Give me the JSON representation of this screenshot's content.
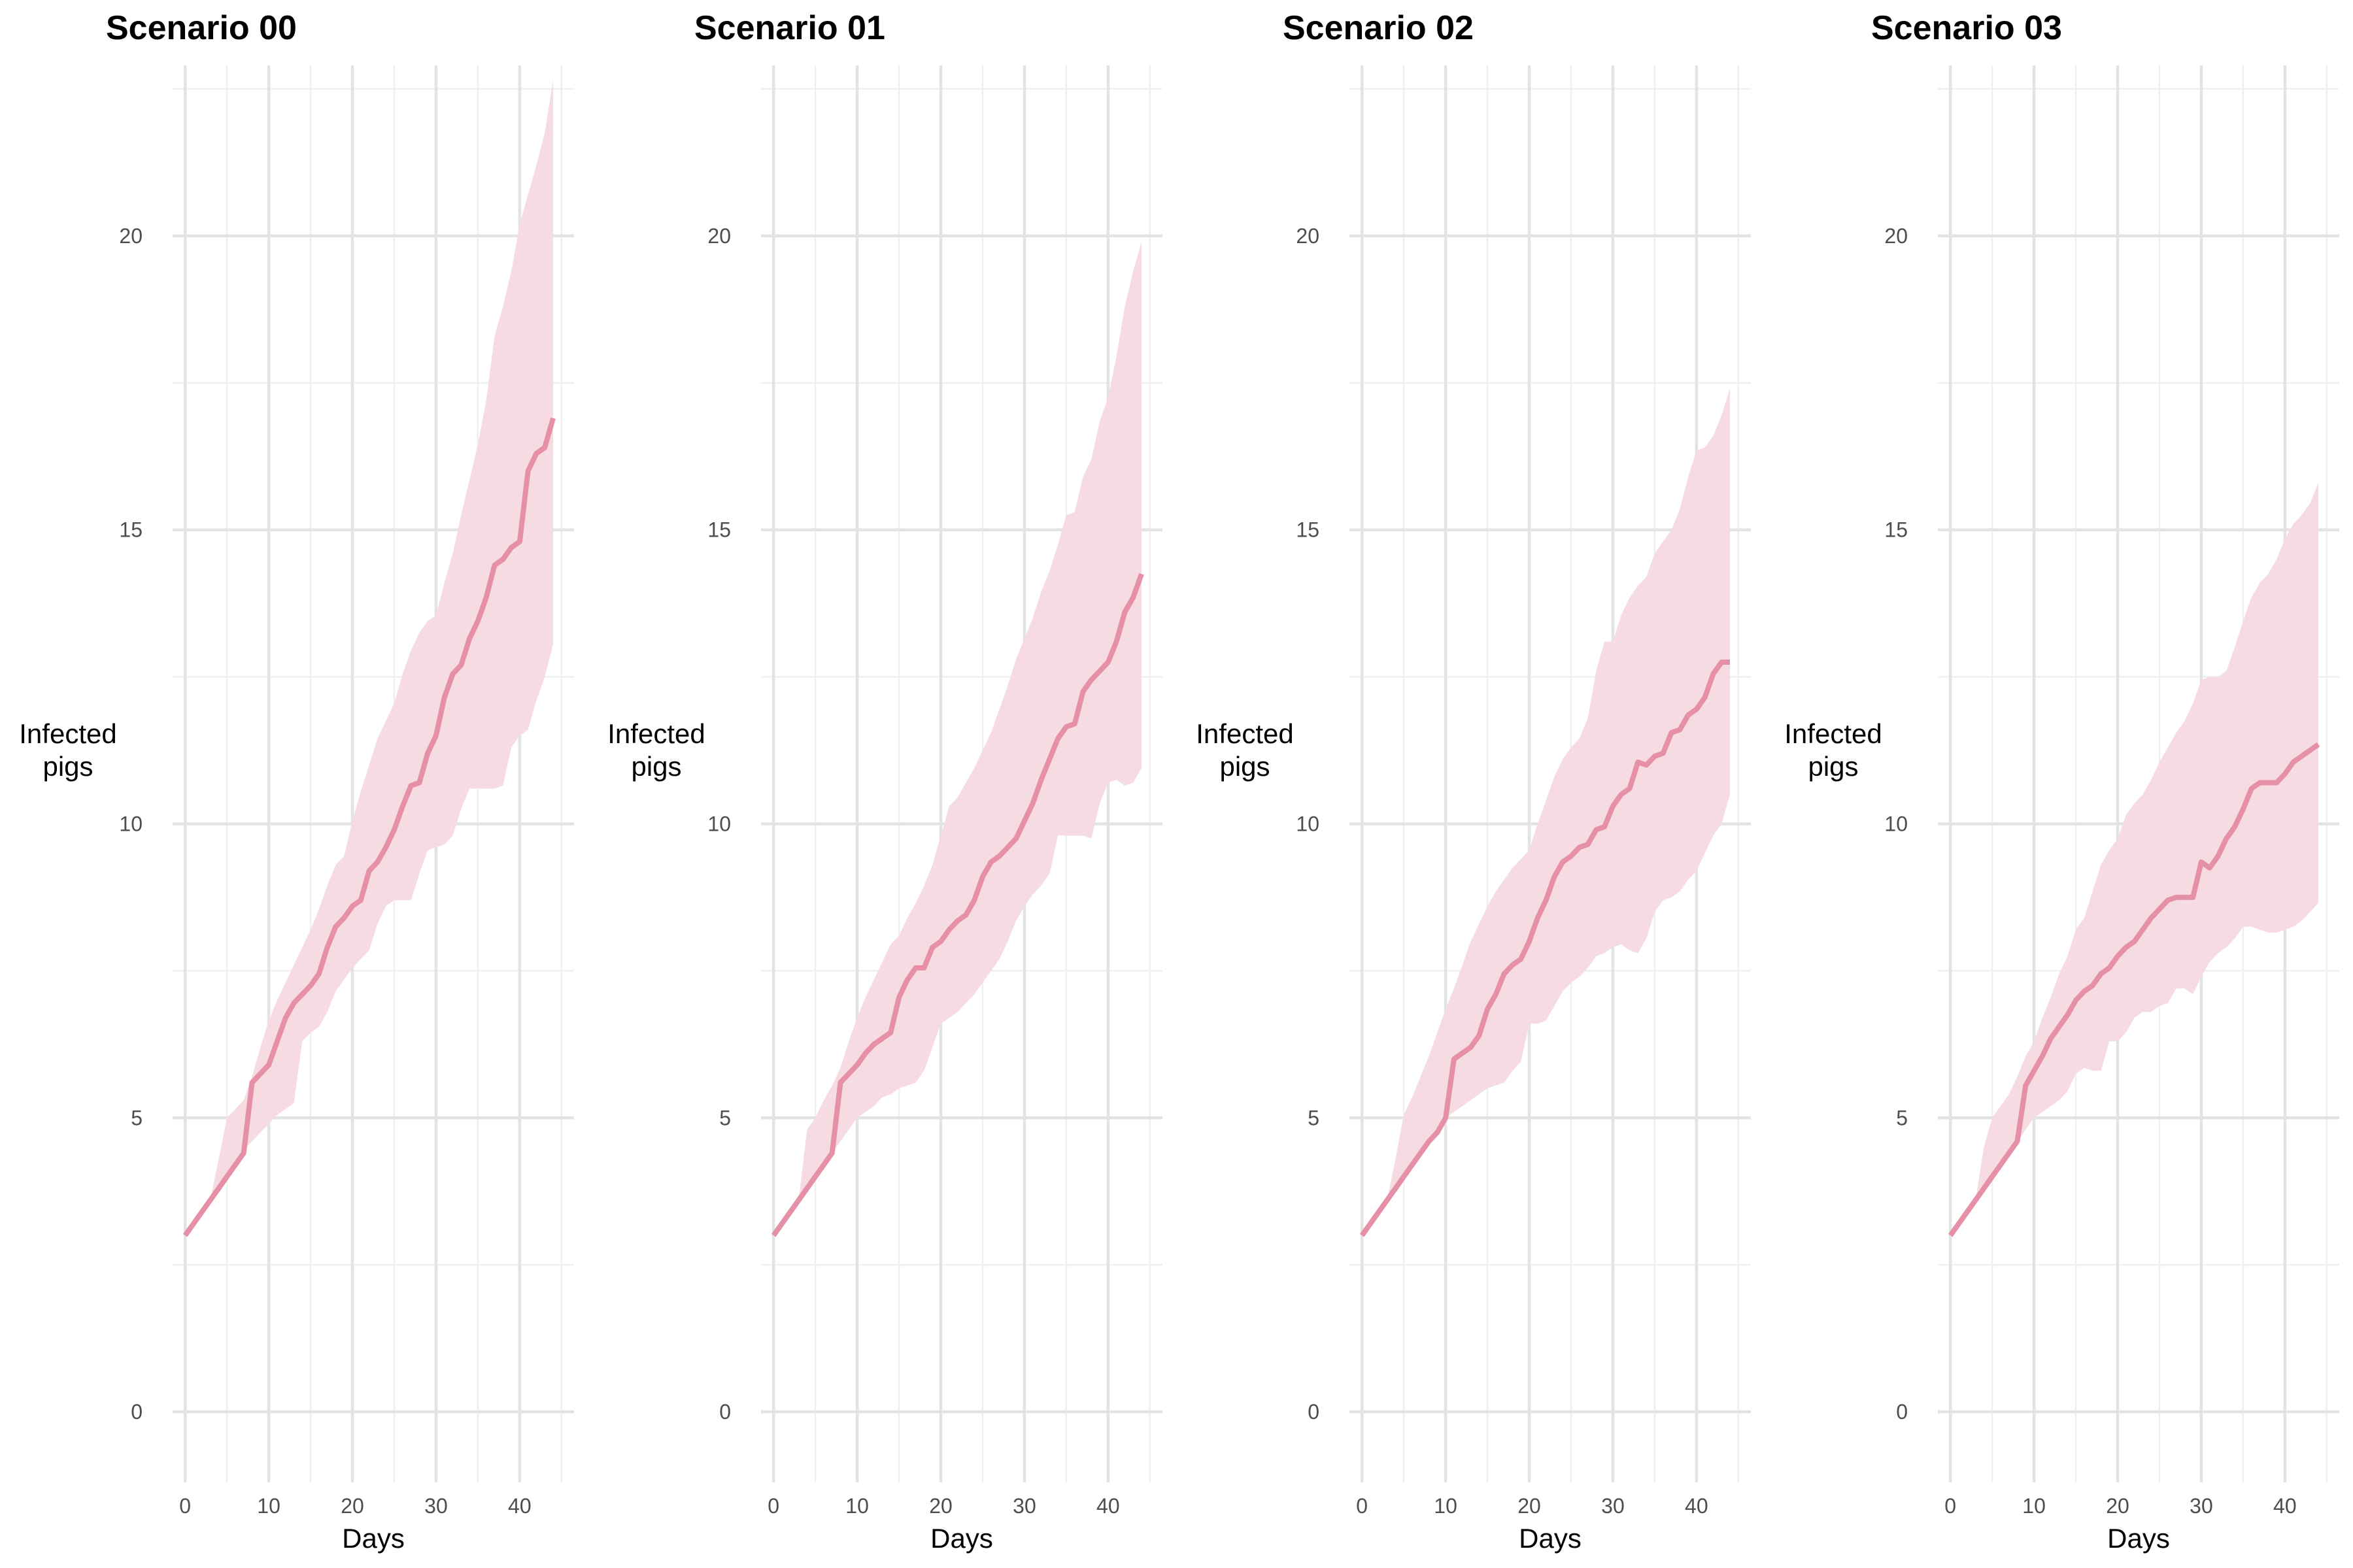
{
  "colors": {
    "line": "#e590a6",
    "ribbon": "#f7dbe3",
    "grid_major": "#e3e3e3",
    "grid_minor": "#efefef",
    "tick_text": "#4d4d4d"
  },
  "chart_data": [
    {
      "type": "line",
      "title": "Scenario 00",
      "xlabel": "Days",
      "ylabel": "Infected\npigs",
      "xlim": [
        -1.5,
        46.5
      ],
      "ylim": [
        -1.2,
        22.9
      ],
      "xticks": [
        0,
        10,
        20,
        30,
        40
      ],
      "yticks": [
        0,
        5,
        10,
        15,
        20
      ],
      "grid": true,
      "x": [
        0,
        1,
        2,
        3,
        4,
        5,
        6,
        7,
        8,
        9,
        10,
        11,
        12,
        13,
        14,
        15,
        16,
        17,
        18,
        19,
        20,
        21,
        22,
        23,
        24,
        25,
        26,
        27,
        28,
        29,
        30,
        31,
        32,
        33,
        34,
        35,
        36,
        37,
        38,
        39,
        40,
        41,
        42,
        43,
        44
      ],
      "series": [
        {
          "values": [
            3.0,
            3.2,
            3.4,
            3.6,
            3.8,
            4.0,
            4.2,
            4.4,
            5.6,
            5.75,
            5.9,
            6.3,
            6.7,
            6.95,
            7.1,
            7.25,
            7.45,
            7.9,
            8.25,
            8.4,
            8.6,
            8.7,
            9.2,
            9.35,
            9.6,
            9.9,
            10.3,
            10.65,
            10.7,
            11.2,
            11.5,
            12.15,
            12.55,
            12.7,
            13.15,
            13.45,
            13.85,
            14.4,
            14.5,
            14.7,
            14.8,
            16.0,
            16.3,
            16.4,
            16.9
          ]
        },
        {
          "values": [
            3.0,
            3.2,
            3.4,
            3.6,
            3.8,
            4.0,
            4.2,
            4.45,
            4.6,
            4.75,
            4.9,
            5.05,
            5.15,
            5.25,
            6.3,
            6.45,
            6.55,
            6.8,
            7.15,
            7.35,
            7.55,
            7.7,
            7.85,
            8.3,
            8.6,
            8.7,
            8.7,
            8.7,
            9.15,
            9.55,
            9.6,
            9.65,
            9.8,
            10.25,
            10.6,
            10.6,
            10.6,
            10.6,
            10.65,
            11.3,
            11.5,
            11.6,
            12.1,
            12.5,
            13.05
          ]
        },
        {
          "values": [
            3.0,
            3.2,
            3.4,
            3.6,
            4.3,
            5.0,
            5.15,
            5.3,
            5.7,
            6.2,
            6.65,
            7.0,
            7.3,
            7.6,
            7.9,
            8.2,
            8.55,
            8.95,
            9.3,
            9.45,
            10.05,
            10.55,
            11.0,
            11.45,
            11.75,
            12.05,
            12.55,
            12.95,
            13.25,
            13.45,
            13.55,
            14.1,
            14.6,
            15.25,
            15.85,
            16.45,
            17.2,
            18.3,
            18.8,
            19.4,
            20.2,
            20.7,
            21.2,
            21.75,
            22.65
          ]
        }
      ]
    },
    {
      "type": "line",
      "title": "Scenario 01",
      "xlabel": "Days",
      "ylabel": "Infected\npigs",
      "xlim": [
        -1.5,
        46.5
      ],
      "ylim": [
        -1.2,
        22.9
      ],
      "xticks": [
        0,
        10,
        20,
        30,
        40
      ],
      "yticks": [
        0,
        5,
        10,
        15,
        20
      ],
      "grid": true,
      "x": [
        0,
        1,
        2,
        3,
        4,
        5,
        6,
        7,
        8,
        9,
        10,
        11,
        12,
        13,
        14,
        15,
        16,
        17,
        18,
        19,
        20,
        21,
        22,
        23,
        24,
        25,
        26,
        27,
        28,
        29,
        30,
        31,
        32,
        33,
        34,
        35,
        36,
        37,
        38,
        39,
        40,
        41,
        42,
        43,
        44
      ],
      "series": [
        {
          "values": [
            3.0,
            3.2,
            3.4,
            3.6,
            3.8,
            4.0,
            4.2,
            4.4,
            5.6,
            5.75,
            5.9,
            6.1,
            6.25,
            6.35,
            6.45,
            7.05,
            7.35,
            7.55,
            7.55,
            7.9,
            8.0,
            8.2,
            8.35,
            8.45,
            8.7,
            9.1,
            9.35,
            9.45,
            9.6,
            9.75,
            10.05,
            10.35,
            10.75,
            11.1,
            11.45,
            11.65,
            11.7,
            12.25,
            12.45,
            12.6,
            12.75,
            13.1,
            13.6,
            13.85,
            14.25
          ]
        },
        {
          "values": [
            3.0,
            3.2,
            3.4,
            3.6,
            3.8,
            4.0,
            4.2,
            4.4,
            4.6,
            4.8,
            5.0,
            5.1,
            5.2,
            5.35,
            5.4,
            5.5,
            5.55,
            5.6,
            5.8,
            6.2,
            6.6,
            6.7,
            6.8,
            6.95,
            7.1,
            7.3,
            7.5,
            7.7,
            8.0,
            8.35,
            8.6,
            8.8,
            8.95,
            9.15,
            9.8,
            9.8,
            9.8,
            9.8,
            9.75,
            10.35,
            10.7,
            10.75,
            10.65,
            10.7,
            10.95
          ]
        },
        {
          "values": [
            3.0,
            3.2,
            3.4,
            3.6,
            4.8,
            5.0,
            5.3,
            5.55,
            5.85,
            6.3,
            6.7,
            7.05,
            7.35,
            7.65,
            7.95,
            8.1,
            8.4,
            8.65,
            8.95,
            9.3,
            9.8,
            10.3,
            10.45,
            10.7,
            10.95,
            11.25,
            11.55,
            11.95,
            12.35,
            12.8,
            13.15,
            13.5,
            13.95,
            14.3,
            14.75,
            15.25,
            15.3,
            15.9,
            16.2,
            16.85,
            17.25,
            17.95,
            18.8,
            19.4,
            19.9
          ]
        }
      ]
    },
    {
      "type": "line",
      "title": "Scenario 02",
      "xlabel": "Days",
      "ylabel": "Infected\npigs",
      "xlim": [
        -1.5,
        46.5
      ],
      "ylim": [
        -1.2,
        22.9
      ],
      "xticks": [
        0,
        10,
        20,
        30,
        40
      ],
      "yticks": [
        0,
        5,
        10,
        15,
        20
      ],
      "grid": true,
      "x": [
        0,
        1,
        2,
        3,
        4,
        5,
        6,
        7,
        8,
        9,
        10,
        11,
        12,
        13,
        14,
        15,
        16,
        17,
        18,
        19,
        20,
        21,
        22,
        23,
        24,
        25,
        26,
        27,
        28,
        29,
        30,
        31,
        32,
        33,
        34,
        35,
        36,
        37,
        38,
        39,
        40,
        41,
        42,
        43,
        44
      ],
      "series": [
        {
          "values": [
            3.0,
            3.2,
            3.4,
            3.6,
            3.8,
            4.0,
            4.2,
            4.4,
            4.6,
            4.75,
            5.0,
            6.0,
            6.1,
            6.2,
            6.4,
            6.85,
            7.1,
            7.45,
            7.6,
            7.7,
            8.0,
            8.4,
            8.7,
            9.1,
            9.35,
            9.45,
            9.6,
            9.65,
            9.9,
            9.95,
            10.3,
            10.5,
            10.6,
            11.05,
            11.0,
            11.15,
            11.2,
            11.55,
            11.6,
            11.85,
            11.95,
            12.15,
            12.55,
            12.75,
            12.75
          ]
        },
        {
          "values": [
            3.0,
            3.2,
            3.4,
            3.6,
            3.8,
            4.0,
            4.2,
            4.4,
            4.6,
            4.8,
            5.0,
            5.1,
            5.2,
            5.3,
            5.4,
            5.5,
            5.55,
            5.6,
            5.8,
            5.95,
            6.6,
            6.6,
            6.65,
            6.9,
            7.15,
            7.3,
            7.4,
            7.55,
            7.75,
            7.8,
            7.9,
            7.95,
            7.85,
            7.8,
            8.05,
            8.5,
            8.7,
            8.75,
            8.85,
            9.05,
            9.2,
            9.5,
            9.8,
            10.0,
            10.5
          ]
        },
        {
          "values": [
            3.0,
            3.2,
            3.4,
            3.6,
            4.3,
            5.05,
            5.35,
            5.7,
            6.05,
            6.45,
            6.85,
            7.2,
            7.6,
            8.0,
            8.3,
            8.6,
            8.85,
            9.05,
            9.25,
            9.4,
            9.55,
            10.0,
            10.4,
            10.8,
            11.1,
            11.3,
            11.45,
            11.8,
            12.6,
            13.1,
            13.1,
            13.55,
            13.85,
            14.05,
            14.2,
            14.6,
            14.8,
            15.0,
            15.35,
            15.9,
            16.35,
            16.4,
            16.6,
            16.95,
            17.4
          ]
        }
      ]
    },
    {
      "type": "line",
      "title": "Scenario 03",
      "xlabel": "Days",
      "ylabel": "Infected\npigs",
      "xlim": [
        -1.5,
        46.5
      ],
      "ylim": [
        -1.2,
        22.9
      ],
      "xticks": [
        0,
        10,
        20,
        30,
        40
      ],
      "yticks": [
        0,
        5,
        10,
        15,
        20
      ],
      "grid": true,
      "x": [
        0,
        1,
        2,
        3,
        4,
        5,
        6,
        7,
        8,
        9,
        10,
        11,
        12,
        13,
        14,
        15,
        16,
        17,
        18,
        19,
        20,
        21,
        22,
        23,
        24,
        25,
        26,
        27,
        28,
        29,
        30,
        31,
        32,
        33,
        34,
        35,
        36,
        37,
        38,
        39,
        40,
        41,
        42,
        43,
        44
      ],
      "series": [
        {
          "values": [
            3.0,
            3.2,
            3.4,
            3.6,
            3.8,
            4.0,
            4.2,
            4.4,
            4.6,
            5.55,
            5.8,
            6.05,
            6.35,
            6.55,
            6.75,
            7.0,
            7.15,
            7.25,
            7.45,
            7.55,
            7.75,
            7.9,
            8.0,
            8.2,
            8.4,
            8.55,
            8.7,
            8.75,
            8.75,
            8.75,
            9.35,
            9.25,
            9.45,
            9.75,
            9.95,
            10.25,
            10.6,
            10.7,
            10.7,
            10.7,
            10.85,
            11.05,
            11.15,
            11.25,
            11.35
          ]
        },
        {
          "values": [
            3.0,
            3.2,
            3.4,
            3.6,
            3.8,
            4.0,
            4.2,
            4.4,
            4.6,
            4.8,
            5.0,
            5.1,
            5.2,
            5.3,
            5.45,
            5.75,
            5.85,
            5.8,
            5.8,
            6.3,
            6.3,
            6.45,
            6.7,
            6.8,
            6.8,
            6.9,
            6.95,
            7.2,
            7.2,
            7.1,
            7.4,
            7.65,
            7.8,
            7.9,
            8.05,
            8.25,
            8.25,
            8.2,
            8.15,
            8.15,
            8.2,
            8.25,
            8.35,
            8.5,
            8.65
          ]
        },
        {
          "values": [
            3.0,
            3.2,
            3.4,
            3.6,
            4.5,
            5.0,
            5.2,
            5.4,
            5.7,
            6.05,
            6.3,
            6.7,
            7.05,
            7.45,
            7.75,
            8.2,
            8.4,
            8.85,
            9.3,
            9.55,
            9.75,
            10.15,
            10.35,
            10.5,
            10.75,
            11.05,
            11.3,
            11.55,
            11.75,
            12.05,
            12.45,
            12.5,
            12.5,
            12.6,
            13.0,
            13.45,
            13.85,
            14.1,
            14.25,
            14.5,
            14.85,
            15.1,
            15.25,
            15.45,
            15.8
          ]
        }
      ]
    }
  ]
}
